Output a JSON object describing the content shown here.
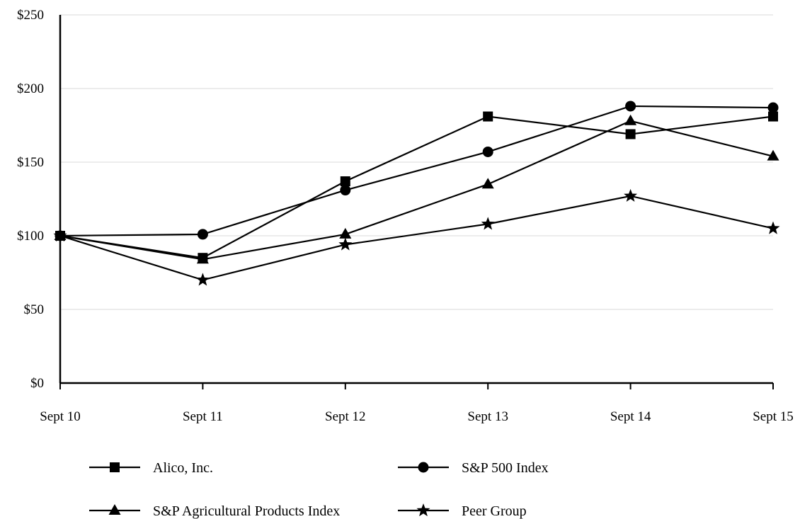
{
  "chart_data": {
    "type": "line",
    "title": "",
    "xlabel": "",
    "ylabel": "",
    "categories": [
      "Sept 10",
      "Sept 11",
      "Sept 12",
      "Sept 13",
      "Sept 14",
      "Sept 15"
    ],
    "ylim": [
      0,
      250
    ],
    "yticks": [
      0,
      50,
      100,
      150,
      200,
      250
    ],
    "ytick_labels": [
      "$0",
      "$50",
      "$100",
      "$150",
      "$200",
      "$250"
    ],
    "grid": true,
    "legend_position": "bottom",
    "series": [
      {
        "name": "Alico, Inc.",
        "marker": "square",
        "values": [
          100,
          85,
          137,
          181,
          169,
          181
        ]
      },
      {
        "name": "S&P 500 Index",
        "marker": "circle",
        "values": [
          100,
          101,
          131,
          157,
          188,
          187
        ]
      },
      {
        "name": "S&P Agricultural Products Index",
        "marker": "triangle",
        "values": [
          100,
          84,
          101,
          135,
          178,
          154
        ]
      },
      {
        "name": "Peer Group",
        "marker": "star",
        "values": [
          100,
          70,
          94,
          108,
          127,
          105
        ]
      }
    ]
  }
}
